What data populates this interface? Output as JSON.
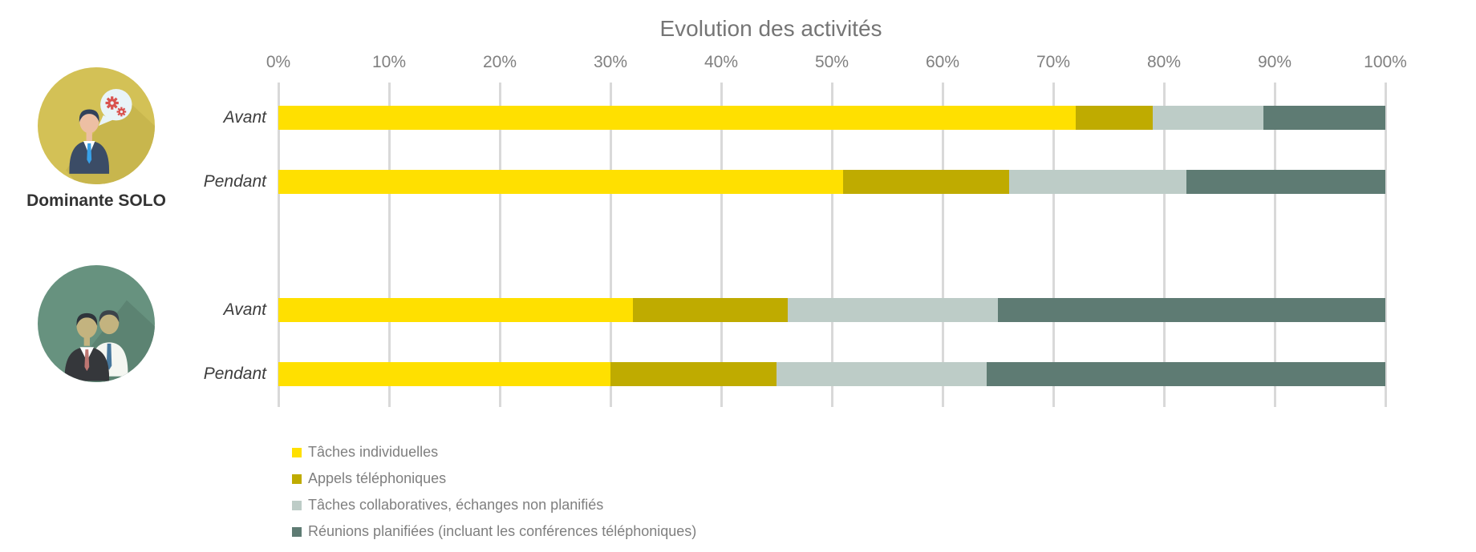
{
  "title": "Evolution des activités",
  "x_axis": {
    "ticks": [
      "0%",
      "10%",
      "20%",
      "30%",
      "40%",
      "50%",
      "60%",
      "70%",
      "80%",
      "90%",
      "100%"
    ]
  },
  "groups": [
    {
      "label": "Dominante SOLO",
      "icon": "person-with-gears-speech-bubble-icon"
    },
    {
      "label": "",
      "icon": "two-people-icon"
    }
  ],
  "legend": [
    {
      "label": "Tâches individuelles",
      "color": "#FFE000"
    },
    {
      "label": "Appels téléphoniques",
      "color": "#BFAB00"
    },
    {
      "label": "Tâches collaboratives, échanges non planifiés",
      "color": "#BDCCC7"
    },
    {
      "label": "Réunions planifiées (incluant les conférences téléphoniques)",
      "color": "#5E7B73"
    }
  ],
  "colors": {
    "title_text": "#757575",
    "tick_text": "#808080",
    "row_label_text": "#3D3D3D",
    "legend_text": "#7F7F7F",
    "gridline": "#D9D9D9",
    "solo_circle": "#D3C156",
    "duo_circle": "#67927F"
  },
  "chart_data": {
    "type": "bar",
    "orientation": "horizontal",
    "stacked": true,
    "unit": "%",
    "title": "Evolution des activités",
    "xlim": [
      0,
      100
    ],
    "x_ticks": [
      "0%",
      "10%",
      "20%",
      "30%",
      "40%",
      "50%",
      "60%",
      "70%",
      "80%",
      "90%",
      "100%"
    ],
    "grid": true,
    "legend_position": "bottom-left",
    "series_names": [
      "Tâches individuelles",
      "Appels téléphoniques",
      "Tâches collaboratives, échanges non planifiés",
      "Réunions planifiées (incluant les conférences téléphoniques)"
    ],
    "series_colors": [
      "#FFE000",
      "#BFAB00",
      "#BDCCC7",
      "#5E7B73"
    ],
    "groups": [
      {
        "label": "Dominante SOLO",
        "bars": [
          {
            "label": "Avant",
            "values": [
              72,
              7,
              10,
              11
            ]
          },
          {
            "label": "Pendant",
            "values": [
              51,
              15,
              16,
              18
            ]
          }
        ]
      },
      {
        "label": "",
        "bars": [
          {
            "label": "Avant",
            "values": [
              32,
              14,
              19,
              35
            ]
          },
          {
            "label": "Pendant",
            "values": [
              30,
              15,
              19,
              36
            ]
          }
        ]
      }
    ]
  }
}
